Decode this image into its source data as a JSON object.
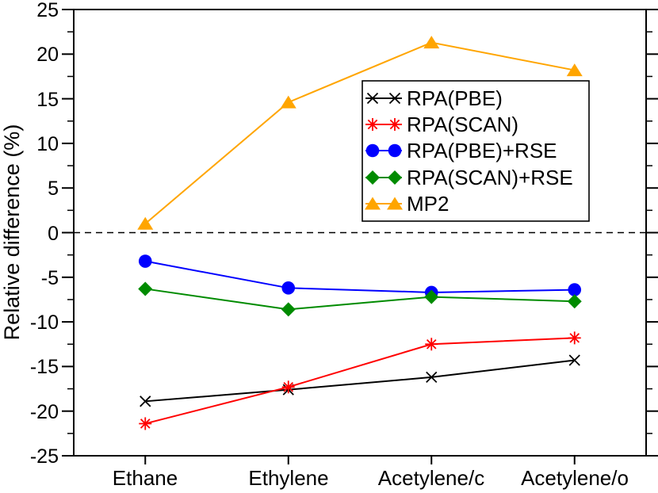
{
  "chart_data": {
    "type": "line",
    "title": "",
    "xlabel": "",
    "ylabel": "Relative difference (%)",
    "categories": [
      "Ethane",
      "Ethylene",
      "Acetylene/c",
      "Acetylene/o"
    ],
    "series": [
      {
        "name": "RPA(PBE)",
        "color": "#000000",
        "marker": "x-cross",
        "values": [
          -18.9,
          -17.6,
          -16.2,
          -14.3
        ]
      },
      {
        "name": "RPA(SCAN)",
        "color": "#ff0000",
        "marker": "asterisk",
        "values": [
          -21.4,
          -17.3,
          -12.5,
          -11.8
        ]
      },
      {
        "name": "RPA(PBE)+RSE",
        "color": "#0000ff",
        "marker": "circle",
        "values": [
          -3.2,
          -6.2,
          -6.7,
          -6.4
        ]
      },
      {
        "name": "RPA(SCAN)+RSE",
        "color": "#008b00",
        "marker": "diamond",
        "values": [
          -6.3,
          -8.6,
          -7.2,
          -7.7
        ]
      },
      {
        "name": "MP2",
        "color": "#ffa500",
        "marker": "triangle-up",
        "values": [
          1.0,
          14.6,
          21.3,
          18.2
        ]
      }
    ],
    "ylim": [
      -25,
      25
    ],
    "ytick_major": 5,
    "ytick_minor": 2.5,
    "yticklabels": [
      "25",
      "20",
      "15",
      "10",
      "5",
      "0",
      "-5",
      "-10",
      "-15",
      "-20",
      "-25"
    ],
    "zero_line_dashed": true,
    "grid": false,
    "legend": {
      "position": "upper-right",
      "border": true
    },
    "axis_color": "#000000",
    "background": "#ffffff"
  }
}
